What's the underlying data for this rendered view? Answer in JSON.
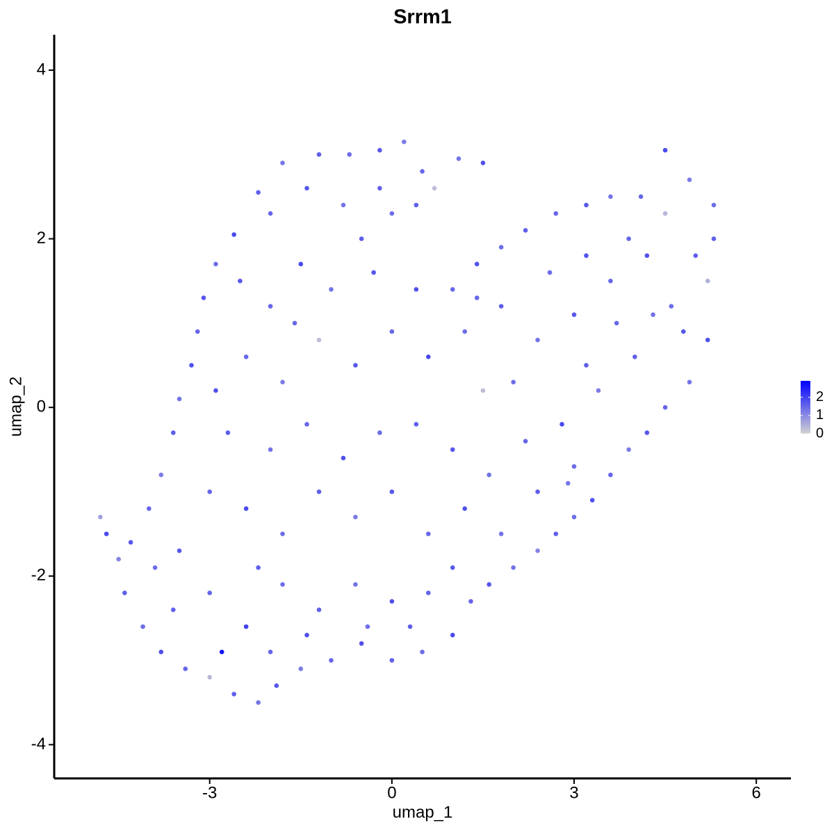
{
  "chart_data": {
    "type": "scatter",
    "title": "Srrm1",
    "x_label": "umap_1",
    "y_label": "umap_2",
    "xlim": [
      -5.56,
      6.57
    ],
    "ylim": [
      -4.4,
      4.42
    ],
    "xticks": [
      -3,
      0,
      3,
      6
    ],
    "yticks": [
      -4,
      -2,
      0,
      2,
      4
    ],
    "color_low": "#d3d3d3",
    "color_high": "#0000ff",
    "colorlim": [
      0,
      2.9
    ],
    "colorticks": [
      0,
      1,
      2
    ],
    "points": [
      [
        -1.8,
        2.9,
        1.3
      ],
      [
        -1.2,
        3.0,
        1.6
      ],
      [
        -0.7,
        3.0,
        1.4
      ],
      [
        -0.2,
        3.05,
        1.7
      ],
      [
        0.2,
        3.15,
        1.2
      ],
      [
        0.5,
        2.8,
        1.5
      ],
      [
        1.1,
        2.95,
        1.3
      ],
      [
        1.5,
        2.9,
        1.8
      ],
      [
        -2.2,
        2.55,
        1.6
      ],
      [
        -2.6,
        2.05,
        1.9
      ],
      [
        -2.9,
        1.7,
        1.4
      ],
      [
        -3.1,
        1.3,
        1.7
      ],
      [
        -3.2,
        0.9,
        1.5
      ],
      [
        -3.3,
        0.5,
        1.8
      ],
      [
        -3.5,
        0.1,
        1.3
      ],
      [
        -3.6,
        -0.3,
        1.6
      ],
      [
        -3.8,
        -0.8,
        1.2
      ],
      [
        -4.0,
        -1.2,
        1.5
      ],
      [
        -4.3,
        -1.6,
        1.7
      ],
      [
        -4.5,
        -1.8,
        1.1
      ],
      [
        -4.8,
        -1.3,
        0.7
      ],
      [
        -4.7,
        -1.5,
        1.9
      ],
      [
        -4.4,
        -2.2,
        1.6
      ],
      [
        -4.1,
        -2.6,
        1.4
      ],
      [
        -3.8,
        -2.9,
        1.8
      ],
      [
        -3.4,
        -3.1,
        1.5
      ],
      [
        -3.0,
        -3.2,
        0.4
      ],
      [
        -2.6,
        -3.4,
        1.6
      ],
      [
        -2.2,
        -3.5,
        1.3
      ],
      [
        -1.9,
        -3.3,
        1.7
      ],
      [
        -1.5,
        -3.1,
        1.2
      ],
      [
        -1.0,
        -3.0,
        1.5
      ],
      [
        -0.5,
        -2.8,
        1.8
      ],
      [
        0,
        -3.0,
        1.6
      ],
      [
        0.5,
        -2.9,
        1.4
      ],
      [
        1.0,
        -2.7,
        1.9
      ],
      [
        1.3,
        -2.3,
        1.5
      ],
      [
        1.6,
        -2.1,
        1.7
      ],
      [
        2.0,
        -1.9,
        1.3
      ],
      [
        2.4,
        -1.7,
        1.1
      ],
      [
        2.7,
        -1.5,
        1.6
      ],
      [
        3.0,
        -1.3,
        1.4
      ],
      [
        3.3,
        -1.1,
        1.8
      ],
      [
        3.6,
        -0.8,
        1.5
      ],
      [
        3.9,
        -0.5,
        1.2
      ],
      [
        4.2,
        -0.3,
        1.7
      ],
      [
        4.5,
        0,
        1.5
      ],
      [
        4.9,
        0.3,
        1.3
      ],
      [
        5.2,
        0.8,
        1.8
      ],
      [
        5.2,
        1.5,
        0.5
      ],
      [
        5.3,
        2.0,
        1.6
      ],
      [
        5.3,
        2.4,
        1.4
      ],
      [
        4.9,
        2.7,
        1.2
      ],
      [
        4.5,
        3.05,
        1.9
      ],
      [
        4.1,
        2.5,
        1.5
      ],
      [
        3.6,
        2.5,
        1.3
      ],
      [
        3.2,
        2.4,
        1.7
      ],
      [
        2.7,
        2.3,
        1.5
      ],
      [
        2.2,
        2.1,
        1.6
      ],
      [
        1.8,
        1.9,
        1.4
      ],
      [
        1.4,
        1.7,
        1.8
      ],
      [
        1.0,
        1.4,
        1.5
      ],
      [
        0.7,
        2.6,
        0.3
      ],
      [
        0.4,
        2.4,
        1.6
      ],
      [
        -2.5,
        1.5,
        1.7
      ],
      [
        -2.0,
        1.2,
        1.5
      ],
      [
        -1.5,
        1.7,
        1.9
      ],
      [
        -1.0,
        1.4,
        1.3
      ],
      [
        -0.5,
        2.0,
        1.6
      ],
      [
        0,
        2.3,
        1.4
      ],
      [
        0.4,
        1.4,
        1.8
      ],
      [
        -2.4,
        0.6,
        1.5
      ],
      [
        -1.8,
        0.3,
        1.2
      ],
      [
        -1.2,
        0.8,
        0.3
      ],
      [
        -0.6,
        0.5,
        1.7
      ],
      [
        0,
        0.9,
        1.5
      ],
      [
        0.6,
        0.6,
        1.9
      ],
      [
        1.2,
        0.9,
        1.4
      ],
      [
        1.8,
        1.2,
        1.6
      ],
      [
        2.4,
        0.8,
        1.3
      ],
      [
        3.0,
        1.1,
        1.7
      ],
      [
        3.6,
        1.5,
        1.5
      ],
      [
        4.2,
        1.8,
        1.8
      ],
      [
        4.6,
        1.2,
        1.4
      ],
      [
        4.0,
        0.6,
        1.6
      ],
      [
        3.4,
        0.2,
        1.2
      ],
      [
        2.8,
        -0.2,
        1.9
      ],
      [
        2.2,
        -0.4,
        1.5
      ],
      [
        1.6,
        -0.8,
        1.3
      ],
      [
        1.0,
        -0.5,
        1.7
      ],
      [
        0.4,
        -0.2,
        1.6
      ],
      [
        -0.2,
        -0.3,
        1.4
      ],
      [
        -0.8,
        -0.6,
        1.8
      ],
      [
        -1.4,
        -0.2,
        1.5
      ],
      [
        -2.0,
        -0.5,
        1.3
      ],
      [
        -2.7,
        -0.3,
        1.6
      ],
      [
        -3.0,
        -1.0,
        1.5
      ],
      [
        -2.4,
        -1.2,
        1.9
      ],
      [
        -1.8,
        -1.5,
        1.4
      ],
      [
        -1.2,
        -1.0,
        1.6
      ],
      [
        -0.6,
        -1.3,
        1.2
      ],
      [
        0,
        -1.0,
        1.7
      ],
      [
        0.6,
        -1.5,
        1.5
      ],
      [
        1.2,
        -1.2,
        1.8
      ],
      [
        1.8,
        -1.5,
        1.3
      ],
      [
        2.4,
        -1.0,
        1.6
      ],
      [
        3.0,
        -0.7,
        1.4
      ],
      [
        -3.5,
        -1.7,
        1.7
      ],
      [
        -3.0,
        -2.2,
        1.5
      ],
      [
        -2.4,
        -2.6,
        2.0
      ],
      [
        -1.8,
        -2.1,
        1.4
      ],
      [
        -1.2,
        -2.4,
        1.6
      ],
      [
        -0.6,
        -2.1,
        1.3
      ],
      [
        0,
        -2.3,
        1.8
      ],
      [
        0.6,
        -2.2,
        1.5
      ],
      [
        1.0,
        -1.9,
        1.7
      ],
      [
        -3.6,
        -2.4,
        1.6
      ],
      [
        -2.8,
        -2.9,
        2.6
      ],
      [
        -2.0,
        -2.9,
        1.5
      ],
      [
        -1.4,
        -2.7,
        1.8
      ],
      [
        -0.4,
        -2.6,
        1.4
      ],
      [
        0.3,
        -2.6,
        1.6
      ],
      [
        -2.0,
        2.3,
        1.5
      ],
      [
        -1.4,
        2.6,
        1.7
      ],
      [
        -0.8,
        2.4,
        1.3
      ],
      [
        -0.2,
        2.6,
        1.6
      ],
      [
        2.6,
        1.6,
        1.4
      ],
      [
        3.2,
        1.8,
        1.8
      ],
      [
        3.9,
        2.0,
        1.5
      ],
      [
        4.5,
        2.3,
        0.4
      ],
      [
        5.0,
        1.8,
        1.6
      ],
      [
        4.8,
        0.9,
        1.7
      ],
      [
        4.3,
        1.1,
        1.3
      ],
      [
        3.7,
        1.0,
        1.5
      ],
      [
        3.2,
        0.5,
        1.6
      ],
      [
        2.0,
        0.3,
        1.4
      ],
      [
        1.5,
        0.2,
        0.3
      ],
      [
        -0.3,
        1.6,
        1.7
      ],
      [
        -1.6,
        1.0,
        1.5
      ],
      [
        -2.9,
        0.2,
        1.8
      ],
      [
        -3.9,
        -1.9,
        1.4
      ],
      [
        -2.2,
        -1.9,
        1.6
      ],
      [
        1.4,
        1.3,
        1.5
      ],
      [
        2.9,
        -0.9,
        1.3
      ]
    ]
  }
}
